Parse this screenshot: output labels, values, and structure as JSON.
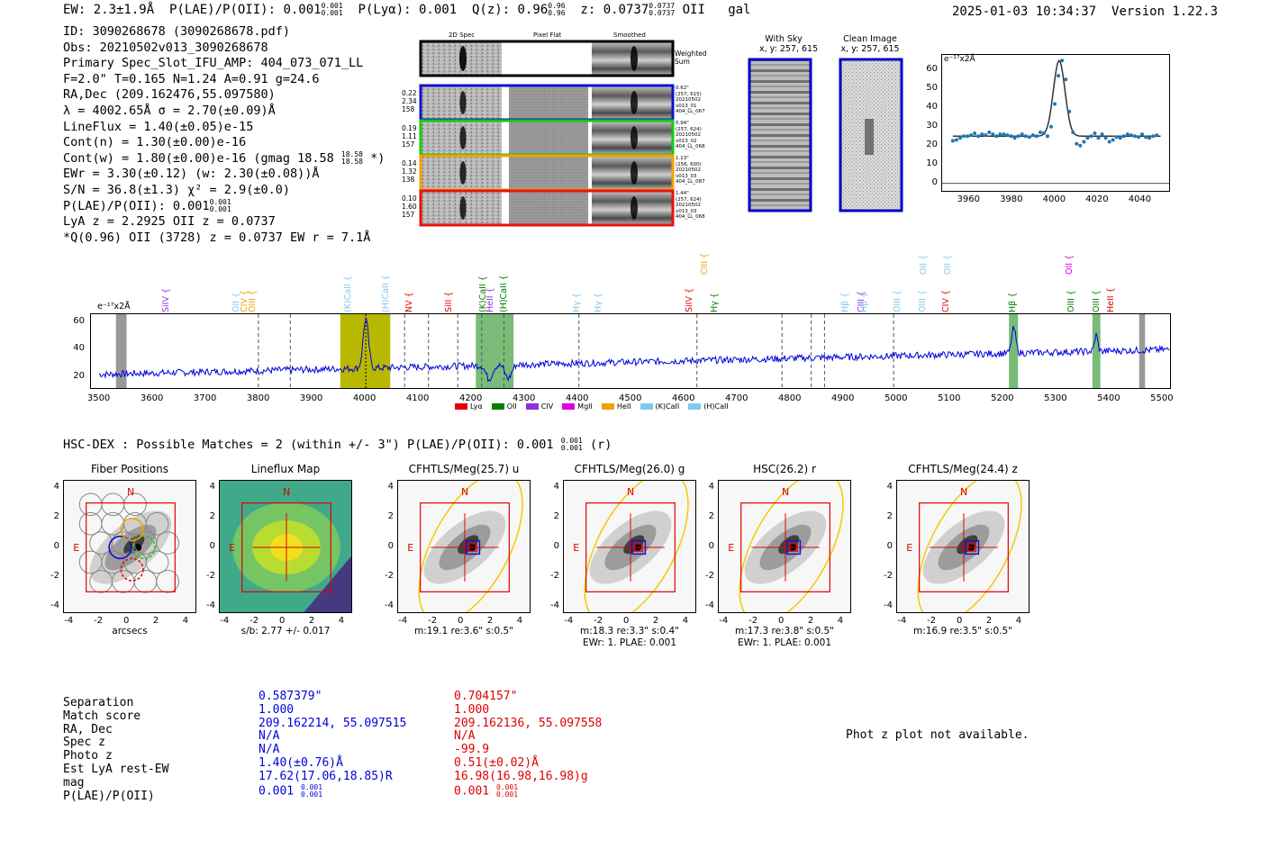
{
  "header": {
    "ew": "EW: 2.3±1.9Å",
    "plae_lbl": "P(LAE)/P(OII): 0.001",
    "plae_hi": "0.001",
    "plae_lo": "0.001",
    "plya": "P(Lyα): 0.001",
    "qz": "Q(z): 0.96",
    "qz_hi": "0.96",
    "qz_lo": "0.96",
    "z": "z: 0.0737",
    "z_hi": "0.0737",
    "z_lo": "0.0737",
    "line": "OII",
    "kind": "gal",
    "timestamp": "2025-01-03 10:34:37",
    "version": "Version 1.22.3"
  },
  "info": {
    "id": "ID: 3090268678 (3090268678.pdf)",
    "obs": "Obs: 20210502v013_3090268678",
    "primary": "Primary Spec_Slot_IFU_AMP: 404_073_071_LL",
    "fwhm": "F=2.0\"  T=0.165  N=1.24  A=0.91  g=24.6",
    "radec": "RA,Dec (209.162476,55.097580)",
    "lambda": "λ = 4002.65Å  σ = 2.70(±0.09)Å",
    "lineflux": "LineFlux = 1.40(±0.05)e-15",
    "contn": "Cont(n) = 1.30(±0.00)e-16",
    "contw": "Cont(w) = 1.80(±0.00)e-16 (gmag 18.58",
    "contw_hi": "18.58",
    "contw_lo": "18.58",
    "contw_end": "*)",
    "ewr": "EWr = 3.30(±0.12) (w: 2.30(±0.08))Å",
    "sn": "S/N = 36.8(±1.3)  χ² = 2.9(±0.0)",
    "plae": "P(LAE)/P(OII): 0.001",
    "plae_hi": "0.001",
    "plae_lo": "0.001",
    "lya": "LyA z = 2.2925  OII z = 0.0737",
    "q": "*Q(0.96) OII (3728) z = 0.0737  EW r = 7.1Å"
  },
  "cutouts": {
    "col_2d": "2D Spec",
    "col_flat": "Pixel Flat",
    "col_smooth": "Smoothed",
    "weighted_sum": "Weighted Sum",
    "rows": [
      {
        "w": "0.22",
        "x": "2.34",
        "n": "158",
        "color": "#1010d0",
        "sep": "0.62\"",
        "pos": "(257, 615)",
        "d1": "20210502",
        "d2": "v013_01",
        "d3": "404_LL_067"
      },
      {
        "w": "0.19",
        "x": "1.11",
        "n": "157",
        "color": "#10cc10",
        "sep": "0.94\"",
        "pos": "(257, 624)",
        "d1": "20210502",
        "d2": "v013_02",
        "d3": "404_LL_068"
      },
      {
        "w": "0.14",
        "x": "1.32",
        "n": "138",
        "color": "#f5a000",
        "sep": "1.13\"",
        "pos": "(256, 600)",
        "d1": "20210502",
        "d2": "v013_03",
        "d3": "404_LL_087"
      },
      {
        "w": "0.10",
        "x": "1.60",
        "n": "157",
        "color": "#e81010",
        "sep": "1.44\"",
        "pos": "(257, 624)",
        "d1": "20210502",
        "d2": "v013_03",
        "d3": "404_LL_068"
      }
    ],
    "with_sky": "With Sky",
    "with_sky_xy": "x, y: 257, 615",
    "clean": "Clean Image",
    "clean_xy": "x, y: 257, 615"
  },
  "fit_plot": {
    "units": "e⁻¹⁷x2Å",
    "xticks": [
      "3960",
      "3980",
      "4000",
      "4020",
      "4040"
    ],
    "yticks": [
      "0",
      "10",
      "20",
      "30",
      "40",
      "50",
      "60"
    ]
  },
  "full_spec": {
    "units": "e⁻¹⁷x2Å",
    "xticks": [
      "3500",
      "3600",
      "3700",
      "3800",
      "3900",
      "4000",
      "4100",
      "4200",
      "4300",
      "4400",
      "4500",
      "4600",
      "4700",
      "4800",
      "4900",
      "5000",
      "5100",
      "5200",
      "5300",
      "5400",
      "5500"
    ],
    "yticks": [
      "20",
      "40",
      "60"
    ],
    "lines": [
      {
        "name": "SiIV",
        "wl": 3628,
        "color": "#9030e0",
        "row": 1
      },
      {
        "name": "OII",
        "wl": 3760,
        "color": "#80c8f0",
        "row": 1
      },
      {
        "name": "CIV",
        "wl": 3775,
        "color": "#f5a000",
        "row": 1
      },
      {
        "name": "OIII",
        "wl": 3790,
        "color": "#f5a000",
        "row": 1
      },
      {
        "name": "(K)CaII",
        "wl": 3969,
        "color": "#80c8f0",
        "row": 0
      },
      {
        "name": "(H)CaII",
        "wl": 4040,
        "color": "#80c8f0",
        "row": 0
      },
      {
        "name": "NV",
        "wl": 4085,
        "color": "#e00000",
        "row": 1
      },
      {
        "name": "SiII",
        "wl": 4160,
        "color": "#e00000",
        "row": 1
      },
      {
        "name": "(K)CaII",
        "wl": 4224,
        "color": "#008000",
        "row": 0
      },
      {
        "name": "HeII",
        "wl": 4237,
        "color": "#9030e0",
        "row": 1
      },
      {
        "name": "(H)CaII",
        "wl": 4262,
        "color": "#008000",
        "row": 0
      },
      {
        "name": "Hγ",
        "wl": 4400,
        "color": "#80c8f0",
        "row": 1
      },
      {
        "name": "Hγ",
        "wl": 4440,
        "color": "#80c8f0",
        "row": 1
      },
      {
        "name": "SiIV",
        "wl": 4612,
        "color": "#e00000",
        "row": 1
      },
      {
        "name": "CIII",
        "wl": 4641,
        "color": "#f5a000",
        "row": 2
      },
      {
        "name": "Hγ",
        "wl": 4660,
        "color": "#008000",
        "row": 1
      },
      {
        "name": "Hβ",
        "wl": 4905,
        "color": "#80c8f0",
        "row": 1
      },
      {
        "name": "CIII",
        "wl": 4936,
        "color": "#9030e0",
        "row": 1
      },
      {
        "name": "Hβ",
        "wl": 4941,
        "color": "#80c8f0",
        "row": 1
      },
      {
        "name": "OIII",
        "wl": 5004,
        "color": "#80c8f0",
        "row": 1
      },
      {
        "name": "OII",
        "wl": 5052,
        "color": "#80c8f0",
        "row": 2
      },
      {
        "name": "OIII",
        "wl": 5050,
        "color": "#80c8f0",
        "row": 1
      },
      {
        "name": "OII",
        "wl": 5098,
        "color": "#80c8f0",
        "row": 2
      },
      {
        "name": "CIV",
        "wl": 5095,
        "color": "#e00000",
        "row": 1
      },
      {
        "name": "Hβ",
        "wl": 5221,
        "color": "#008000",
        "row": 1
      },
      {
        "name": "OII",
        "wl": 5327,
        "color": "#e000e0",
        "row": 2
      },
      {
        "name": "OIII",
        "wl": 5330,
        "color": "#008000",
        "row": 1
      },
      {
        "name": "OIII",
        "wl": 5377,
        "color": "#008000",
        "row": 1
      },
      {
        "name": "HeII",
        "wl": 5405,
        "color": "#e00000",
        "row": 1
      }
    ],
    "legend": [
      {
        "label": "Lyα",
        "color": "#e00000"
      },
      {
        "label": "OII",
        "color": "#008000"
      },
      {
        "label": "CIV",
        "color": "#9030e0"
      },
      {
        "label": "MgII",
        "color": "#e000e0"
      },
      {
        "label": "HeII",
        "color": "#f5a000"
      },
      {
        "label": "(K)CaII",
        "color": "#80c8f0"
      },
      {
        "label": "(H)CaII",
        "color": "#80c8f0"
      }
    ]
  },
  "hsc": {
    "heading": "HSC-DEX : Possible Matches = 2 (within +/- 3\")  P(LAE)/P(OII): 0.001",
    "h_hi": "0.001",
    "h_lo": "0.001",
    "h_end": "(r)",
    "panels": [
      {
        "title": "Fiber Positions",
        "cap1": "arcsecs",
        "cap2": ""
      },
      {
        "title": "Lineflux Map",
        "cap1": "s/b: 2.77 +/- 0.017",
        "cap2": ""
      },
      {
        "title": "CFHTLS/Meg(25.7) u",
        "cap1": "m:19.1  re:3.6\"  s:0.5\"",
        "cap2": ""
      },
      {
        "title": "CFHTLS/Meg(26.0) g",
        "cap1": "m:18.3  re:3.3\"  s:0.4\"",
        "cap2": "EWr: 1. PLAE: 0.001"
      },
      {
        "title": "HSC(26.2) r",
        "cap1": "m:17.3  re:3.8\"  s:0.5\"",
        "cap2": "EWr: 1. PLAE: 0.001"
      },
      {
        "title": "CFHTLS/Meg(24.4) z",
        "cap1": "m:16.9  re:3.5\"  s:0.5\"",
        "cap2": ""
      }
    ],
    "ticks": [
      "-4",
      "-2",
      "0",
      "2",
      "4"
    ],
    "compass_n": "N",
    "compass_e": "E"
  },
  "table": {
    "labels": [
      "Separation",
      "Match score",
      "RA, Dec",
      "Spec z",
      "Photo z",
      "Est LyA rest-EW",
      "mag",
      "P(LAE)/P(OII)"
    ],
    "col1": [
      "0.587379\"",
      "1.000",
      "209.162214, 55.097515",
      "N/A",
      "N/A",
      "1.40(±0.76)Å",
      "17.62(17.06,18.85)R",
      "0.001"
    ],
    "col1_hi": "0.001",
    "col1_lo": "0.001",
    "col2": [
      "0.704157\"",
      "1.000",
      "209.162136, 55.097558",
      "N/A",
      "-99.9",
      "0.51(±0.02)Å",
      "16.98(16.98,16.98)g",
      "0.001"
    ],
    "col2_hi": "0.001",
    "col2_lo": "0.001",
    "photz_note": "Phot z plot not available."
  }
}
